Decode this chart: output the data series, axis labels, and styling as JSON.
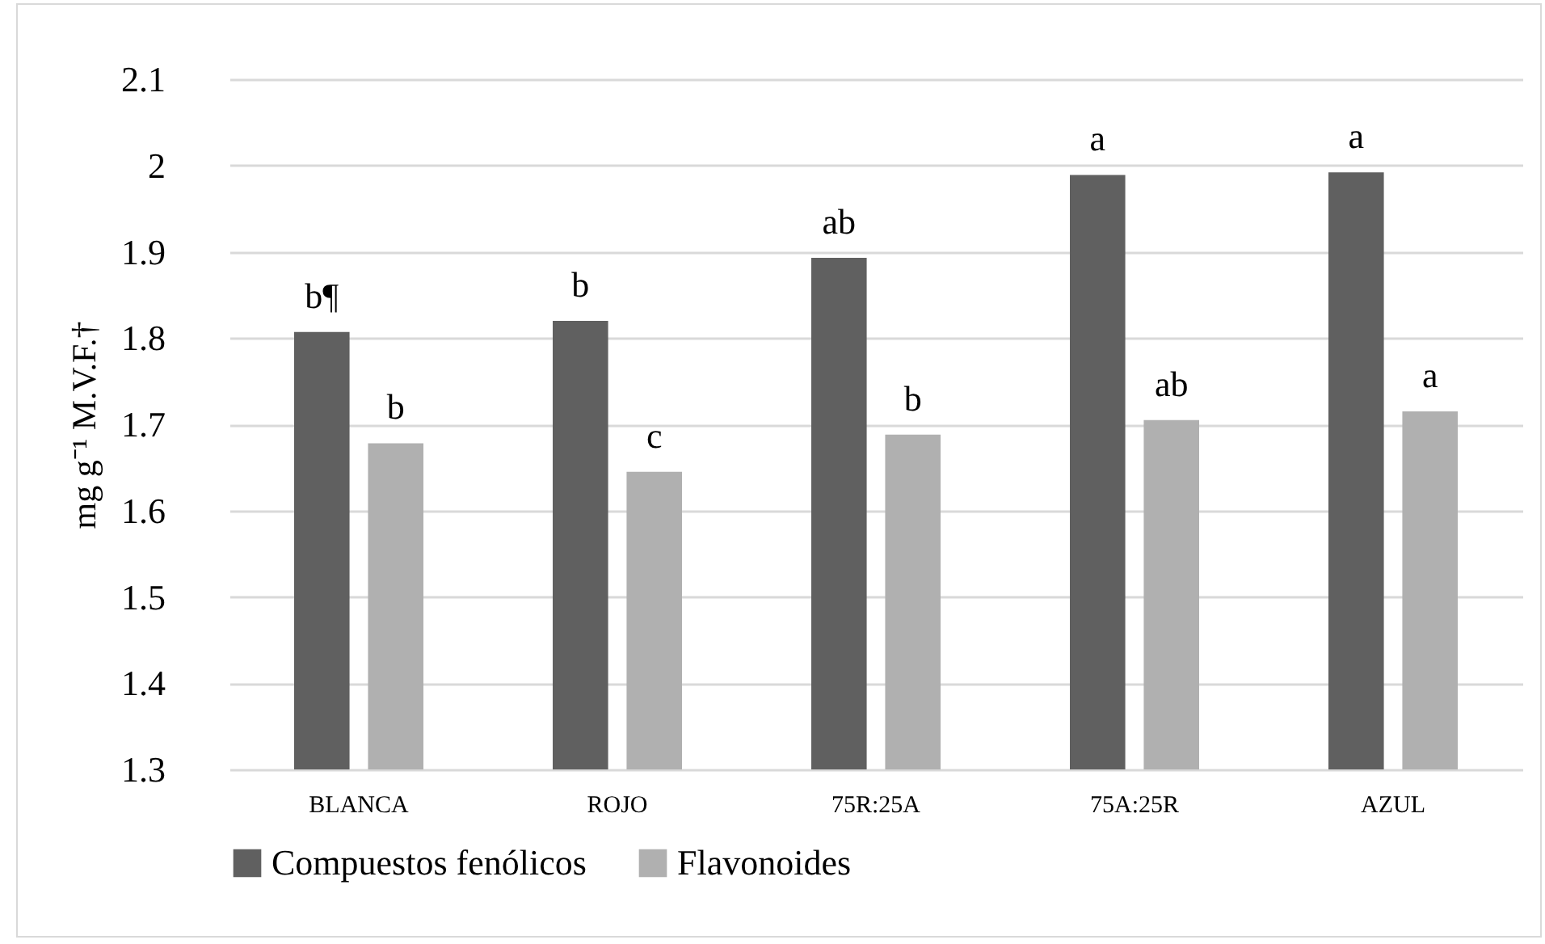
{
  "chart_data": {
    "type": "bar",
    "ylabel": "mg g⁻¹ M.V.F.†",
    "categories": [
      "BLANCA",
      "ROJO",
      "75R:25A",
      "75A:25R",
      "AZUL"
    ],
    "series": [
      {
        "name": "Compuestos fenólicos",
        "color": "#606060",
        "values": [
          1.807,
          1.82,
          1.893,
          1.989,
          1.992
        ],
        "value_labels": [
          "b¶",
          "b",
          "ab",
          "a",
          "a"
        ]
      },
      {
        "name": "Flavonoides",
        "color": "#b0b0b0",
        "values": [
          1.678,
          1.645,
          1.688,
          1.705,
          1.715
        ],
        "value_labels": [
          "b",
          "c",
          "b",
          "ab",
          "a"
        ]
      }
    ],
    "ylim": [
      1.3,
      2.1
    ],
    "yticks": [
      1.3,
      1.4,
      1.5,
      1.6,
      1.7,
      1.8,
      1.9,
      2,
      2.1
    ],
    "grid": "y",
    "legend": "bottom"
  }
}
